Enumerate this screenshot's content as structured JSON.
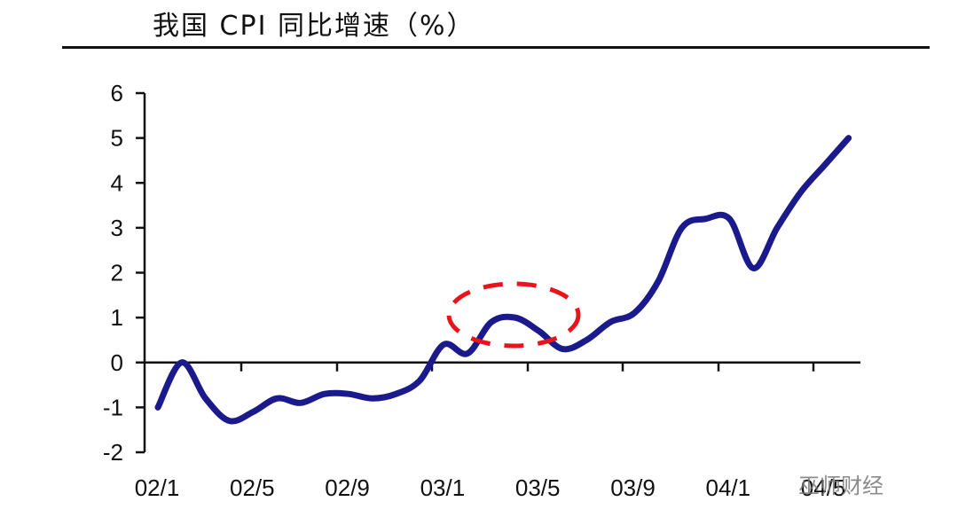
{
  "title": "我国 CPI 同比增速（%）",
  "watermark": "巫师财经",
  "chart_data": {
    "type": "line",
    "title": "我国 CPI 同比增速（%）",
    "xlabel": "",
    "ylabel": "",
    "ylim": [
      -2,
      6
    ],
    "yticks": [
      -2,
      -1,
      0,
      1,
      2,
      3,
      4,
      5,
      6
    ],
    "xtick_labels": [
      "02/1",
      "02/5",
      "02/9",
      "03/1",
      "03/5",
      "03/9",
      "04/1",
      "04/5"
    ],
    "grid": false,
    "legend": null,
    "series": [
      {
        "name": "CPI同比",
        "color": "#1a1a8c",
        "x": [
          "02/1",
          "02/2",
          "02/3",
          "02/4",
          "02/5",
          "02/6",
          "02/7",
          "02/8",
          "02/9",
          "02/10",
          "02/11",
          "02/12",
          "03/1",
          "03/2",
          "03/3",
          "03/4",
          "03/5",
          "03/6",
          "03/7",
          "03/8",
          "03/9",
          "03/10",
          "03/11",
          "03/12",
          "04/1",
          "04/2",
          "04/3",
          "04/4",
          "04/5",
          "04/6"
        ],
        "values": [
          -1.0,
          0.0,
          -0.8,
          -1.3,
          -1.1,
          -0.8,
          -0.9,
          -0.7,
          -0.7,
          -0.8,
          -0.7,
          -0.4,
          0.4,
          0.2,
          0.9,
          1.0,
          0.7,
          0.3,
          0.5,
          0.9,
          1.1,
          1.8,
          3.0,
          3.2,
          3.2,
          2.1,
          3.0,
          3.8,
          4.4,
          5.0
        ]
      }
    ],
    "annotations": [
      {
        "type": "dashed-ellipse",
        "color": "#e8141c",
        "around": "03/3–03/6"
      }
    ]
  }
}
